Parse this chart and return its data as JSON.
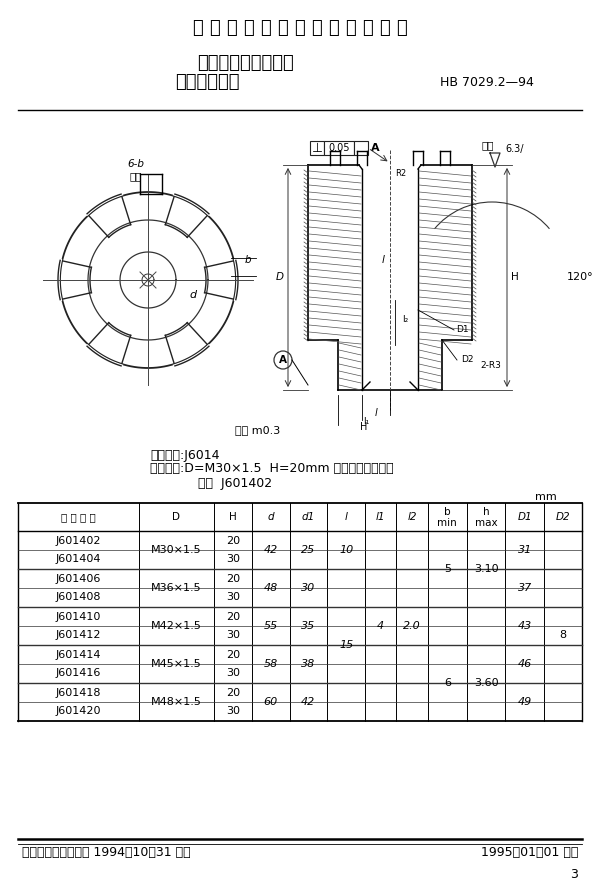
{
  "title_top": "中 华 人 民 共 和 国 航 空 工 业 标 准",
  "title_main1": "夹具通用元件紧固件",
  "title_main2": "带槽滚花螺母",
  "std_number": "HB 7029.2—94",
  "classify_code": "分类代号:J6014",
  "example_line1": "标记示例:D=M30×1.5  H=20mm 的带槽滚花螺母：",
  "example_line2": "螺母  J601402",
  "unit_label": "mm",
  "col_headers": [
    "标 记 代 号",
    "D",
    "H",
    "d",
    "d1",
    "l",
    "l1",
    "l2",
    "b\nmin",
    "h\nmax",
    "D1",
    "D2"
  ],
  "rows": [
    [
      "J601402",
      "M30×1.5",
      "20",
      "42",
      "25",
      "10",
      "",
      "",
      "",
      "",
      "31",
      ""
    ],
    [
      "J601404",
      "",
      "30",
      "",
      "",
      "",
      "",
      "",
      "5",
      "3.10",
      "",
      ""
    ],
    [
      "J601406",
      "M36×1.5",
      "20",
      "48",
      "30",
      "",
      "",
      "",
      "",
      "",
      "37",
      ""
    ],
    [
      "J601408",
      "",
      "30",
      "",
      "",
      "",
      "4",
      "2.0",
      "",
      "",
      "",
      ""
    ],
    [
      "J601410",
      "M42×1.5",
      "20",
      "55",
      "35",
      "",
      "",
      "",
      "",
      "",
      "43",
      "8"
    ],
    [
      "J601412",
      "",
      "30",
      "",
      "",
      "15",
      "",
      "",
      "",
      "",
      "",
      ""
    ],
    [
      "J601414",
      "M45×1.5",
      "20",
      "58",
      "38",
      "",
      "",
      "",
      "6",
      "3.60",
      "46",
      ""
    ],
    [
      "J601416",
      "",
      "30",
      "",
      "",
      "",
      "",
      "",
      "",
      "",
      "",
      ""
    ],
    [
      "J601418",
      "M48×1.5",
      "20",
      "60",
      "42",
      "",
      "",
      "",
      "",
      "",
      "49",
      ""
    ],
    [
      "J601420",
      "",
      "30",
      "",
      "",
      "",
      "",
      "",
      "",
      "",
      "",
      ""
    ]
  ],
  "footer_left": "中国航空工业总公司 1994－10－31 发布",
  "footer_right": "1995－01－01 实施",
  "page_number": "3",
  "bg_color": "#ffffff"
}
